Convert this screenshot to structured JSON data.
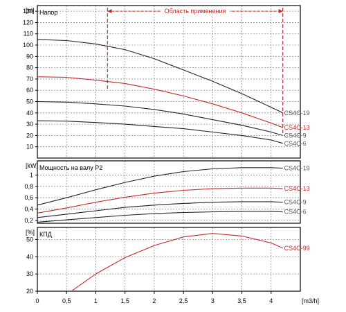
{
  "colors": {
    "black": "#000000",
    "red": "#c62828",
    "grid": "#8c8c8c",
    "curve_dark": "#222222"
  },
  "chart_data": [
    {
      "type": "line",
      "id": "head",
      "title": "Напор",
      "ylabel": "[m]",
      "xlim": [
        0,
        4.5
      ],
      "ylim": [
        0,
        135
      ],
      "yticks": [
        10,
        20,
        30,
        40,
        50,
        60,
        70,
        80,
        90,
        100,
        110,
        120,
        130
      ],
      "grid": true,
      "annotation": {
        "label": "Область применения",
        "x_from": 1.2,
        "x_to": 4.2,
        "y": 130,
        "color": "#c62828"
      },
      "series": [
        {
          "name": "CS4C-19",
          "color": "#222222",
          "x": [
            0,
            0.5,
            1,
            1.5,
            2,
            2.5,
            3,
            3.5,
            4,
            4.2
          ],
          "y": [
            105,
            104,
            101,
            96,
            88,
            78,
            68,
            57,
            45,
            40
          ]
        },
        {
          "name": "CS4C-13",
          "color": "#c62828",
          "x": [
            0,
            0.5,
            1,
            1.5,
            2,
            2.5,
            3,
            3.5,
            4,
            4.2
          ],
          "y": [
            72,
            71.5,
            69,
            66,
            61,
            55,
            48,
            40,
            31,
            27
          ]
        },
        {
          "name": "CS4C-9",
          "color": "#222222",
          "x": [
            0,
            0.5,
            1,
            1.5,
            2,
            2.5,
            3,
            3.5,
            4,
            4.2
          ],
          "y": [
            50,
            49.5,
            48,
            46,
            43,
            39,
            34,
            29,
            23,
            20
          ]
        },
        {
          "name": "CS4C-6",
          "color": "#222222",
          "x": [
            0,
            0.5,
            1,
            1.5,
            2,
            2.5,
            3,
            3.5,
            4,
            4.2
          ],
          "y": [
            33,
            32.7,
            31.5,
            30,
            28,
            26,
            23,
            20,
            16,
            13
          ]
        }
      ]
    },
    {
      "type": "line",
      "id": "power",
      "title": "Мощность на валу P2",
      "ylabel": "[kW]",
      "xlim": [
        0,
        4.5
      ],
      "ylim": [
        0.15,
        1.25
      ],
      "yticks": [
        "0,2",
        "0,4",
        "0,6",
        "0,8",
        "1"
      ],
      "ytick_values": [
        0.2,
        0.4,
        0.6,
        0.8,
        1.0
      ],
      "grid": true,
      "series": [
        {
          "name": "CS4C-19",
          "color": "#222222",
          "x": [
            0,
            0.5,
            1,
            1.5,
            2,
            2.5,
            3,
            3.5,
            4,
            4.2
          ],
          "y": [
            0.47,
            0.6,
            0.74,
            0.87,
            0.98,
            1.06,
            1.11,
            1.13,
            1.13,
            1.12
          ]
        },
        {
          "name": "CS4C-13",
          "color": "#c62828",
          "x": [
            0,
            0.5,
            1,
            1.5,
            2,
            2.5,
            3,
            3.5,
            4,
            4.2
          ],
          "y": [
            0.33,
            0.42,
            0.52,
            0.61,
            0.68,
            0.73,
            0.76,
            0.77,
            0.77,
            0.76
          ]
        },
        {
          "name": "CS4C-9",
          "color": "#222222",
          "x": [
            0,
            0.5,
            1,
            1.5,
            2,
            2.5,
            3,
            3.5,
            4,
            4.2
          ],
          "y": [
            0.25,
            0.31,
            0.37,
            0.43,
            0.47,
            0.5,
            0.52,
            0.53,
            0.53,
            0.52
          ]
        },
        {
          "name": "CS4C-6",
          "color": "#222222",
          "x": [
            0,
            0.5,
            1,
            1.5,
            2,
            2.5,
            3,
            3.5,
            4,
            4.2
          ],
          "y": [
            0.17,
            0.21,
            0.25,
            0.29,
            0.32,
            0.34,
            0.35,
            0.36,
            0.36,
            0.35
          ]
        }
      ]
    },
    {
      "type": "line",
      "id": "efficiency",
      "title": "КПД",
      "ylabel": "[%]",
      "xlabel": "[m3/h]",
      "xlim": [
        0,
        4.5
      ],
      "ylim": [
        20,
        57
      ],
      "yticks": [
        20,
        30,
        40,
        50
      ],
      "xticks": [
        "0",
        "0,5",
        "1",
        "1,5",
        "2",
        "2,5",
        "3",
        "3,5",
        "4"
      ],
      "xtick_values": [
        0,
        0.5,
        1,
        1.5,
        2,
        2.5,
        3,
        3.5,
        4
      ],
      "grid": true,
      "series": [
        {
          "name": "CS4C-99",
          "color": "#c62828",
          "x": [
            0.6,
            1,
            1.5,
            2,
            2.5,
            3,
            3.5,
            4,
            4.2
          ],
          "y": [
            20.5,
            30,
            39.5,
            46.5,
            51.5,
            53.5,
            52,
            48,
            45
          ]
        }
      ]
    }
  ]
}
